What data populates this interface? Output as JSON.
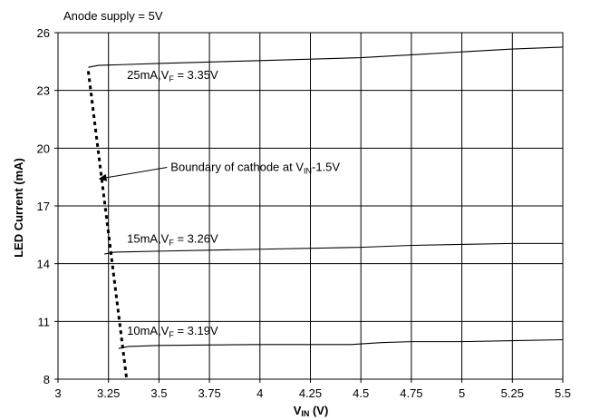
{
  "chart_data": {
    "type": "line",
    "title": "Anode supply = 5V",
    "xlabel": {
      "main": "V",
      "sub": "IN",
      "unit": " (V)"
    },
    "ylabel": "LED Current (mA)",
    "xlim": [
      3,
      5.5
    ],
    "ylim": [
      8,
      26
    ],
    "xticks": [
      3,
      3.25,
      3.5,
      3.75,
      4,
      4.25,
      4.5,
      4.75,
      5,
      5.25,
      5.5
    ],
    "xtick_labels": [
      "3",
      "3.25",
      "3.5",
      "3.75",
      "4",
      "4.25",
      "4.5",
      "4.75",
      "5",
      "5.25",
      "5.5"
    ],
    "yticks": [
      8,
      11,
      14,
      17,
      20,
      23,
      26
    ],
    "ytick_labels": [
      "8",
      "11",
      "14",
      "17",
      "20",
      "23",
      "26"
    ],
    "grid": true,
    "series": [
      {
        "label": {
          "prefix": "25mA,V",
          "sub": "F",
          "suffix": " = 3.35V"
        },
        "x": [
          3.15,
          3.2,
          3.5,
          4.0,
          4.5,
          4.75,
          5.0,
          5.25,
          5.5
        ],
        "y": [
          24.2,
          24.3,
          24.4,
          24.55,
          24.7,
          24.85,
          25.0,
          25.15,
          25.25
        ],
        "label_at": [
          3.4,
          23.6
        ]
      },
      {
        "label": {
          "prefix": "15mA,V",
          "sub": "F",
          "suffix": " = 3.26V"
        },
        "x": [
          3.23,
          3.28,
          3.5,
          4.0,
          4.5,
          4.75,
          5.0,
          5.25,
          5.5
        ],
        "y": [
          14.5,
          14.6,
          14.65,
          14.75,
          14.85,
          14.95,
          15.0,
          15.05,
          15.05
        ],
        "label_at": [
          3.4,
          15.1
        ]
      },
      {
        "label": {
          "prefix": "10mA,V",
          "sub": "F",
          "suffix": " = 3.19V"
        },
        "x": [
          3.3,
          3.35,
          3.5,
          4.0,
          4.45,
          4.6,
          4.75,
          5.0,
          5.25,
          5.5
        ],
        "y": [
          9.6,
          9.7,
          9.75,
          9.8,
          9.8,
          9.9,
          9.95,
          9.95,
          10.0,
          10.05
        ],
        "label_at": [
          3.4,
          10.3
        ]
      }
    ],
    "boundary": {
      "label": {
        "prefix": "Boundary of cathode at V",
        "sub": "IN",
        "suffix": "-1.5V"
      },
      "x": [
        3.15,
        3.34
      ],
      "y": [
        24.0,
        8.0
      ],
      "arrow_from": [
        3.54,
        19.0
      ],
      "arrow_to": [
        3.2,
        18.4
      ]
    }
  }
}
